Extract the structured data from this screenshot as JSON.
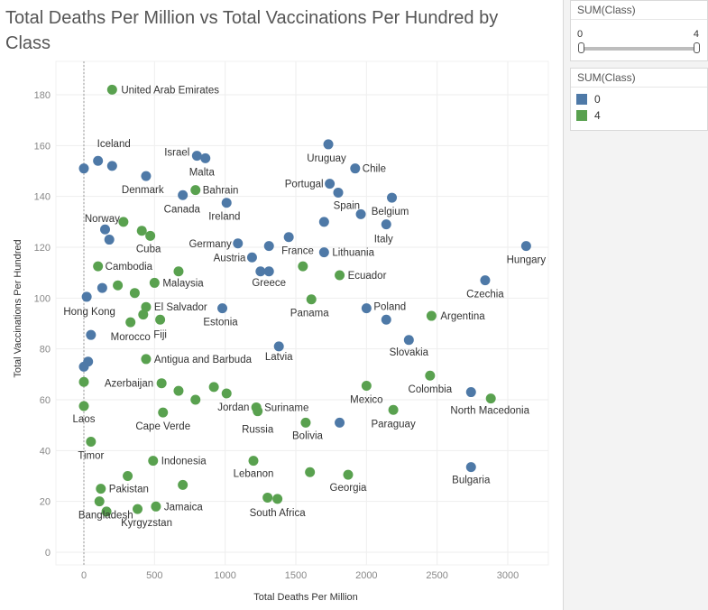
{
  "chart_data": {
    "type": "scatter",
    "title": "Total Deaths Per Million vs Total Vaccinations Per Hundred by Class",
    "xlabel": "Total Deaths Per Million",
    "ylabel": "Total Vaccinations Per Hundred",
    "xlim": [
      -200,
      3250
    ],
    "ylim": [
      -3,
      190
    ],
    "xticks": [
      0,
      500,
      1000,
      1500,
      2000,
      2500,
      3000
    ],
    "yticks": [
      0,
      20,
      40,
      60,
      80,
      100,
      120,
      140,
      160,
      180
    ],
    "grid": true,
    "legend_title": "SUM(Class)",
    "legend": [
      {
        "label": "0",
        "color": "#4e79a7"
      },
      {
        "label": "4",
        "color": "#59a14f"
      }
    ],
    "series": [
      {
        "name": "0",
        "color": "#4e79a7",
        "points": [
          {
            "x": 0,
            "y": 151
          },
          {
            "x": 100,
            "y": 154,
            "label": "Iceland"
          },
          {
            "x": 200,
            "y": 152
          },
          {
            "x": 440,
            "y": 148,
            "label": "Denmark"
          },
          {
            "x": 800,
            "y": 156,
            "label": "Israel"
          },
          {
            "x": 860,
            "y": 155,
            "label": "Malta"
          },
          {
            "x": 700,
            "y": 140.5,
            "label": "Canada"
          },
          {
            "x": 1010,
            "y": 137.5,
            "label": "Ireland"
          },
          {
            "x": 150,
            "y": 127
          },
          {
            "x": 180,
            "y": 123
          },
          {
            "x": 1730,
            "y": 160.5,
            "label": "Uruguay"
          },
          {
            "x": 1920,
            "y": 151,
            "label": "Chile"
          },
          {
            "x": 1740,
            "y": 145,
            "label": "Portugal"
          },
          {
            "x": 1800,
            "y": 141.5
          },
          {
            "x": 1960,
            "y": 133,
            "label": "Spain"
          },
          {
            "x": 2180,
            "y": 139.5,
            "label": "Belgium"
          },
          {
            "x": 1700,
            "y": 130
          },
          {
            "x": 2140,
            "y": 129,
            "label": "Italy"
          },
          {
            "x": 1450,
            "y": 124,
            "label": "France"
          },
          {
            "x": 1090,
            "y": 121.5,
            "label": "Germany"
          },
          {
            "x": 1310,
            "y": 120.5
          },
          {
            "x": 1190,
            "y": 116,
            "label": "Austria"
          },
          {
            "x": 1700,
            "y": 118,
            "label": "Lithuania"
          },
          {
            "x": 1250,
            "y": 110.5
          },
          {
            "x": 1310,
            "y": 110.5,
            "label": "Greece"
          },
          {
            "x": 3130,
            "y": 120.5,
            "label": "Hungary"
          },
          {
            "x": 2840,
            "y": 107,
            "label": "Czechia"
          },
          {
            "x": 130,
            "y": 104
          },
          {
            "x": 20,
            "y": 100.5,
            "label": "Hong Kong"
          },
          {
            "x": 980,
            "y": 96,
            "label": "Estonia"
          },
          {
            "x": 2000,
            "y": 96,
            "label": "Poland"
          },
          {
            "x": 2140,
            "y": 91.5
          },
          {
            "x": 50,
            "y": 85.5
          },
          {
            "x": 2300,
            "y": 83.5,
            "label": "Slovakia"
          },
          {
            "x": 1380,
            "y": 81,
            "label": "Latvia"
          },
          {
            "x": 30,
            "y": 75
          },
          {
            "x": 0,
            "y": 73
          },
          {
            "x": 1810,
            "y": 51
          },
          {
            "x": 2740,
            "y": 63
          },
          {
            "x": 2740,
            "y": 33.5,
            "label": "Bulgaria"
          }
        ]
      },
      {
        "name": "4",
        "color": "#59a14f",
        "points": [
          {
            "x": 200,
            "y": 182,
            "label": "United Arab Emirates"
          },
          {
            "x": 790,
            "y": 142.5,
            "label": "Bahrain"
          },
          {
            "x": 280,
            "y": 130,
            "label": "Norway"
          },
          {
            "x": 410,
            "y": 126.5
          },
          {
            "x": 470,
            "y": 124.5,
            "label": "Cuba"
          },
          {
            "x": 100,
            "y": 112.5,
            "label": "Cambodia"
          },
          {
            "x": 670,
            "y": 110.5
          },
          {
            "x": 1550,
            "y": 112.5
          },
          {
            "x": 1810,
            "y": 109,
            "label": "Ecuador"
          },
          {
            "x": 500,
            "y": 106,
            "label": "Malaysia"
          },
          {
            "x": 240,
            "y": 105
          },
          {
            "x": 360,
            "y": 102
          },
          {
            "x": 1610,
            "y": 99.5,
            "label": "Panama"
          },
          {
            "x": 440,
            "y": 96.5,
            "label": "El Salvador"
          },
          {
            "x": 420,
            "y": 93.5
          },
          {
            "x": 540,
            "y": 91.5,
            "label": "Fiji"
          },
          {
            "x": 330,
            "y": 90.5,
            "label": "Morocco"
          },
          {
            "x": 2460,
            "y": 93,
            "label": "Argentina"
          },
          {
            "x": 440,
            "y": 76,
            "label": "Antigua and Barbuda"
          },
          {
            "x": 2450,
            "y": 69.5,
            "label": "Colombia"
          },
          {
            "x": 0,
            "y": 67
          },
          {
            "x": 550,
            "y": 66.5,
            "label": "Azerbaijan"
          },
          {
            "x": 2000,
            "y": 65.5,
            "label": "Mexico"
          },
          {
            "x": 920,
            "y": 65
          },
          {
            "x": 670,
            "y": 63.5
          },
          {
            "x": 1010,
            "y": 62.5,
            "label": "Jordan"
          },
          {
            "x": 790,
            "y": 60
          },
          {
            "x": 2880,
            "y": 60.5,
            "label": "North Macedonia"
          },
          {
            "x": 1220,
            "y": 57,
            "label": "Suriname"
          },
          {
            "x": 1230,
            "y": 55.5,
            "label": "Russia"
          },
          {
            "x": 0,
            "y": 57.5,
            "label": "Laos"
          },
          {
            "x": 560,
            "y": 55,
            "label": "Cape Verde"
          },
          {
            "x": 2190,
            "y": 56,
            "label": "Paraguay"
          },
          {
            "x": 1570,
            "y": 51,
            "label": "Bolivia"
          },
          {
            "x": 50,
            "y": 43.5,
            "label": "Timor"
          },
          {
            "x": 490,
            "y": 36,
            "label": "Indonesia"
          },
          {
            "x": 1200,
            "y": 36,
            "label": "Lebanon"
          },
          {
            "x": 1600,
            "y": 31.5
          },
          {
            "x": 1870,
            "y": 30.5,
            "label": "Georgia"
          },
          {
            "x": 310,
            "y": 30
          },
          {
            "x": 700,
            "y": 26.5
          },
          {
            "x": 120,
            "y": 25,
            "label": "Pakistan"
          },
          {
            "x": 1300,
            "y": 21.5
          },
          {
            "x": 1370,
            "y": 21,
            "label": "South Africa"
          },
          {
            "x": 110,
            "y": 20,
            "label": "Bangladesh"
          },
          {
            "x": 510,
            "y": 18,
            "label": "Jamaica"
          },
          {
            "x": 380,
            "y": 17,
            "label": "Kyrgyzstan"
          },
          {
            "x": 160,
            "y": 16
          }
        ]
      }
    ]
  },
  "filters": {
    "slider": {
      "title": "SUM(Class)",
      "min_label": "0",
      "max_label": "4",
      "range": [
        0,
        4
      ]
    },
    "legend_title": "SUM(Class)"
  }
}
